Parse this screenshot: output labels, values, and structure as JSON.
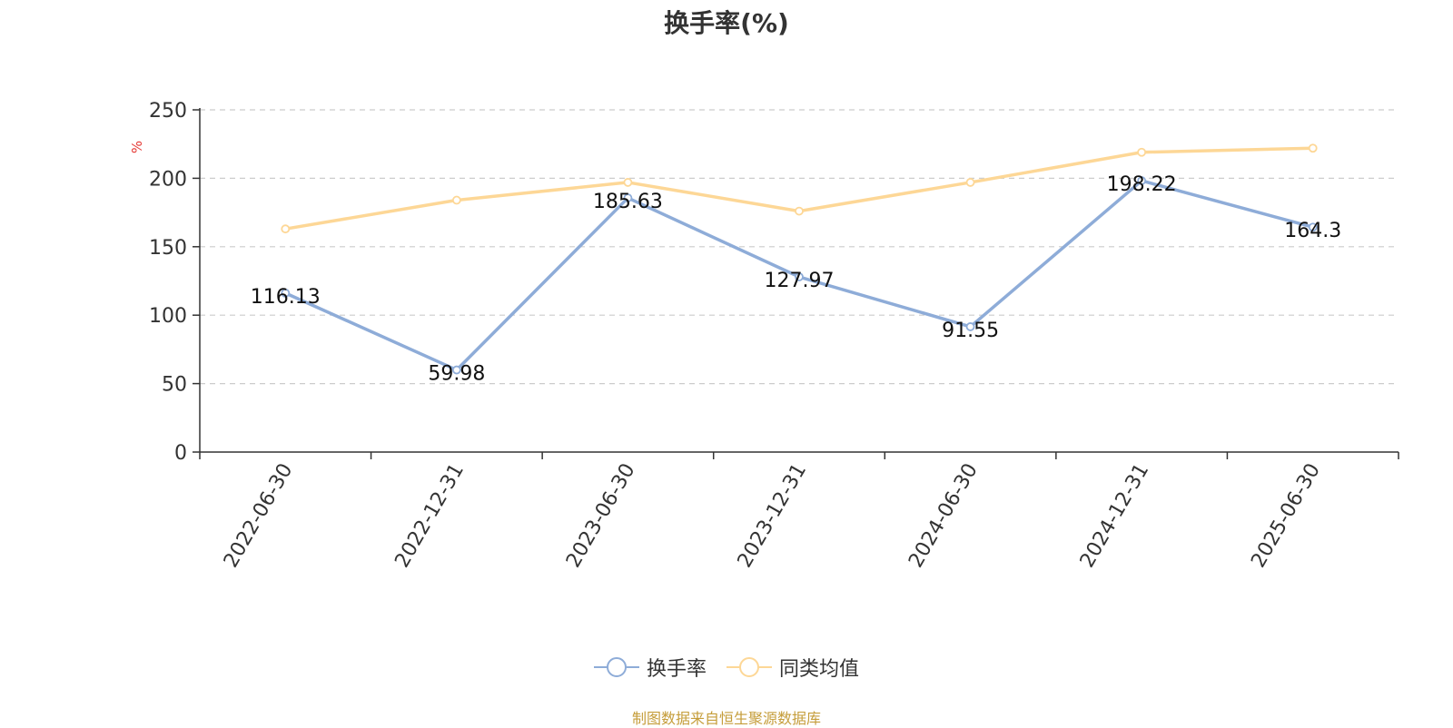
{
  "chart_data": {
    "type": "line",
    "title": "换手率(%)",
    "ylabel": "%",
    "ylim": [
      0,
      250
    ],
    "yticks": [
      0,
      50,
      100,
      150,
      200,
      250
    ],
    "grid": true,
    "legend_position": "bottom",
    "categories": [
      "2022-06-30",
      "2022-12-31",
      "2023-06-30",
      "2023-12-31",
      "2024-06-30",
      "2024-12-31",
      "2025-06-30"
    ],
    "series": [
      {
        "name": "换手率",
        "color": "#8eacd8",
        "values": [
          116.13,
          59.98,
          185.63,
          127.97,
          91.55,
          198.22,
          164.3
        ],
        "labels": [
          "116.13",
          "59.98",
          "185.63",
          "127.97",
          "91.55",
          "198.22",
          "164.3"
        ]
      },
      {
        "name": "同类均值",
        "color": "#fdd796",
        "values": [
          163,
          184,
          197,
          176,
          197,
          219,
          222
        ]
      }
    ]
  },
  "source_note": "制图数据来自恒生聚源数据库"
}
